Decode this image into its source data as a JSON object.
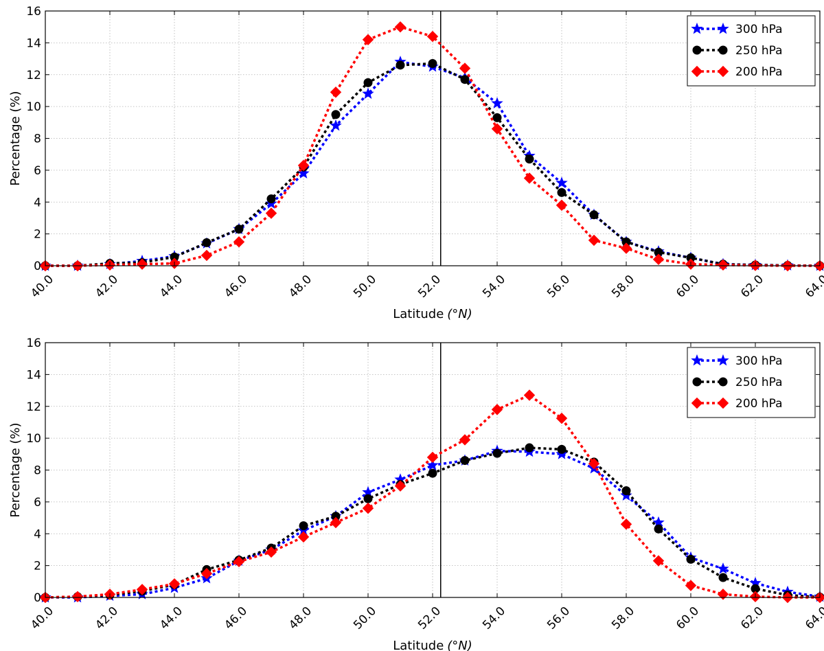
{
  "chart_data": [
    {
      "type": "line",
      "xlabel": "Latitude",
      "xlabel_unit": "(°N)",
      "ylabel": "Percentage (%)",
      "xlim": [
        40,
        64
      ],
      "ylim": [
        0,
        16
      ],
      "xticks": [
        "40.0",
        "42.0",
        "44.0",
        "46.0",
        "48.0",
        "50.0",
        "52.0",
        "54.0",
        "56.0",
        "58.0",
        "60.0",
        "62.0",
        "64.0"
      ],
      "yticks": [
        "0",
        "2",
        "4",
        "6",
        "8",
        "10",
        "12",
        "14",
        "16"
      ],
      "grid": true,
      "legend_position": "top-right",
      "vertical_line_x": 52.25,
      "x": [
        40,
        41,
        42,
        43,
        44,
        45,
        46,
        47,
        48,
        49,
        50,
        51,
        52,
        53,
        54,
        55,
        56,
        57,
        58,
        59,
        60,
        61,
        62,
        63,
        64
      ],
      "series": [
        {
          "name": "300 hPa",
          "color": "#0000ff",
          "marker": "star",
          "values": [
            0.0,
            0.0,
            0.1,
            0.3,
            0.6,
            1.4,
            2.3,
            3.9,
            5.8,
            8.8,
            10.8,
            12.8,
            12.5,
            11.8,
            10.2,
            6.9,
            5.2,
            3.2,
            1.5,
            0.9,
            0.5,
            0.1,
            0.05,
            0.02,
            0.0
          ]
        },
        {
          "name": "250 hPa",
          "color": "#000000",
          "marker": "circle",
          "values": [
            0.0,
            0.0,
            0.15,
            0.2,
            0.55,
            1.45,
            2.3,
            4.2,
            6.2,
            9.5,
            11.5,
            12.6,
            12.7,
            11.7,
            9.3,
            6.7,
            4.6,
            3.2,
            1.5,
            0.85,
            0.5,
            0.1,
            0.05,
            0.02,
            0.0
          ]
        },
        {
          "name": "200 hPa",
          "color": "#ff0000",
          "marker": "diamond",
          "values": [
            0.0,
            0.0,
            0.05,
            0.1,
            0.15,
            0.65,
            1.5,
            3.3,
            6.3,
            10.9,
            14.2,
            15.0,
            14.4,
            12.4,
            8.6,
            5.5,
            3.8,
            1.6,
            1.1,
            0.4,
            0.1,
            0.05,
            0.02,
            0.0,
            0.0
          ]
        }
      ]
    },
    {
      "type": "line",
      "xlabel": "Latitude",
      "xlabel_unit": "(°N)",
      "ylabel": "Percentage (%)",
      "xlim": [
        40,
        64
      ],
      "ylim": [
        0,
        16
      ],
      "xticks": [
        "40.0",
        "42.0",
        "44.0",
        "46.0",
        "48.0",
        "50.0",
        "52.0",
        "54.0",
        "56.0",
        "58.0",
        "60.0",
        "62.0",
        "64.0"
      ],
      "yticks": [
        "0",
        "2",
        "4",
        "6",
        "8",
        "10",
        "12",
        "14",
        "16"
      ],
      "grid": true,
      "legend_position": "top-right",
      "vertical_line_x": 52.25,
      "x": [
        40,
        41,
        42,
        43,
        44,
        45,
        46,
        47,
        48,
        49,
        50,
        51,
        52,
        53,
        54,
        55,
        56,
        57,
        58,
        59,
        60,
        61,
        62,
        63,
        64
      ],
      "series": [
        {
          "name": "300 hPa",
          "color": "#0000ff",
          "marker": "star",
          "values": [
            0.0,
            0.0,
            0.1,
            0.2,
            0.6,
            1.2,
            2.3,
            3.0,
            4.2,
            5.1,
            6.6,
            7.4,
            8.3,
            8.6,
            9.2,
            9.15,
            9.0,
            8.1,
            6.4,
            4.7,
            2.5,
            1.8,
            0.9,
            0.35,
            0.05
          ]
        },
        {
          "name": "250 hPa",
          "color": "#000000",
          "marker": "circle",
          "values": [
            0.0,
            0.05,
            0.15,
            0.4,
            0.8,
            1.75,
            2.35,
            3.1,
            4.5,
            5.1,
            6.2,
            7.1,
            7.8,
            8.6,
            9.05,
            9.4,
            9.3,
            8.5,
            6.7,
            4.3,
            2.4,
            1.25,
            0.55,
            0.15,
            0.02
          ]
        },
        {
          "name": "200 hPa",
          "color": "#ff0000",
          "marker": "diamond",
          "values": [
            0.0,
            0.05,
            0.2,
            0.5,
            0.85,
            1.5,
            2.25,
            2.85,
            3.8,
            4.7,
            5.6,
            7.0,
            8.8,
            9.9,
            11.8,
            12.7,
            11.25,
            8.4,
            4.6,
            2.3,
            0.75,
            0.2,
            0.05,
            0.0,
            0.0
          ]
        }
      ]
    }
  ]
}
